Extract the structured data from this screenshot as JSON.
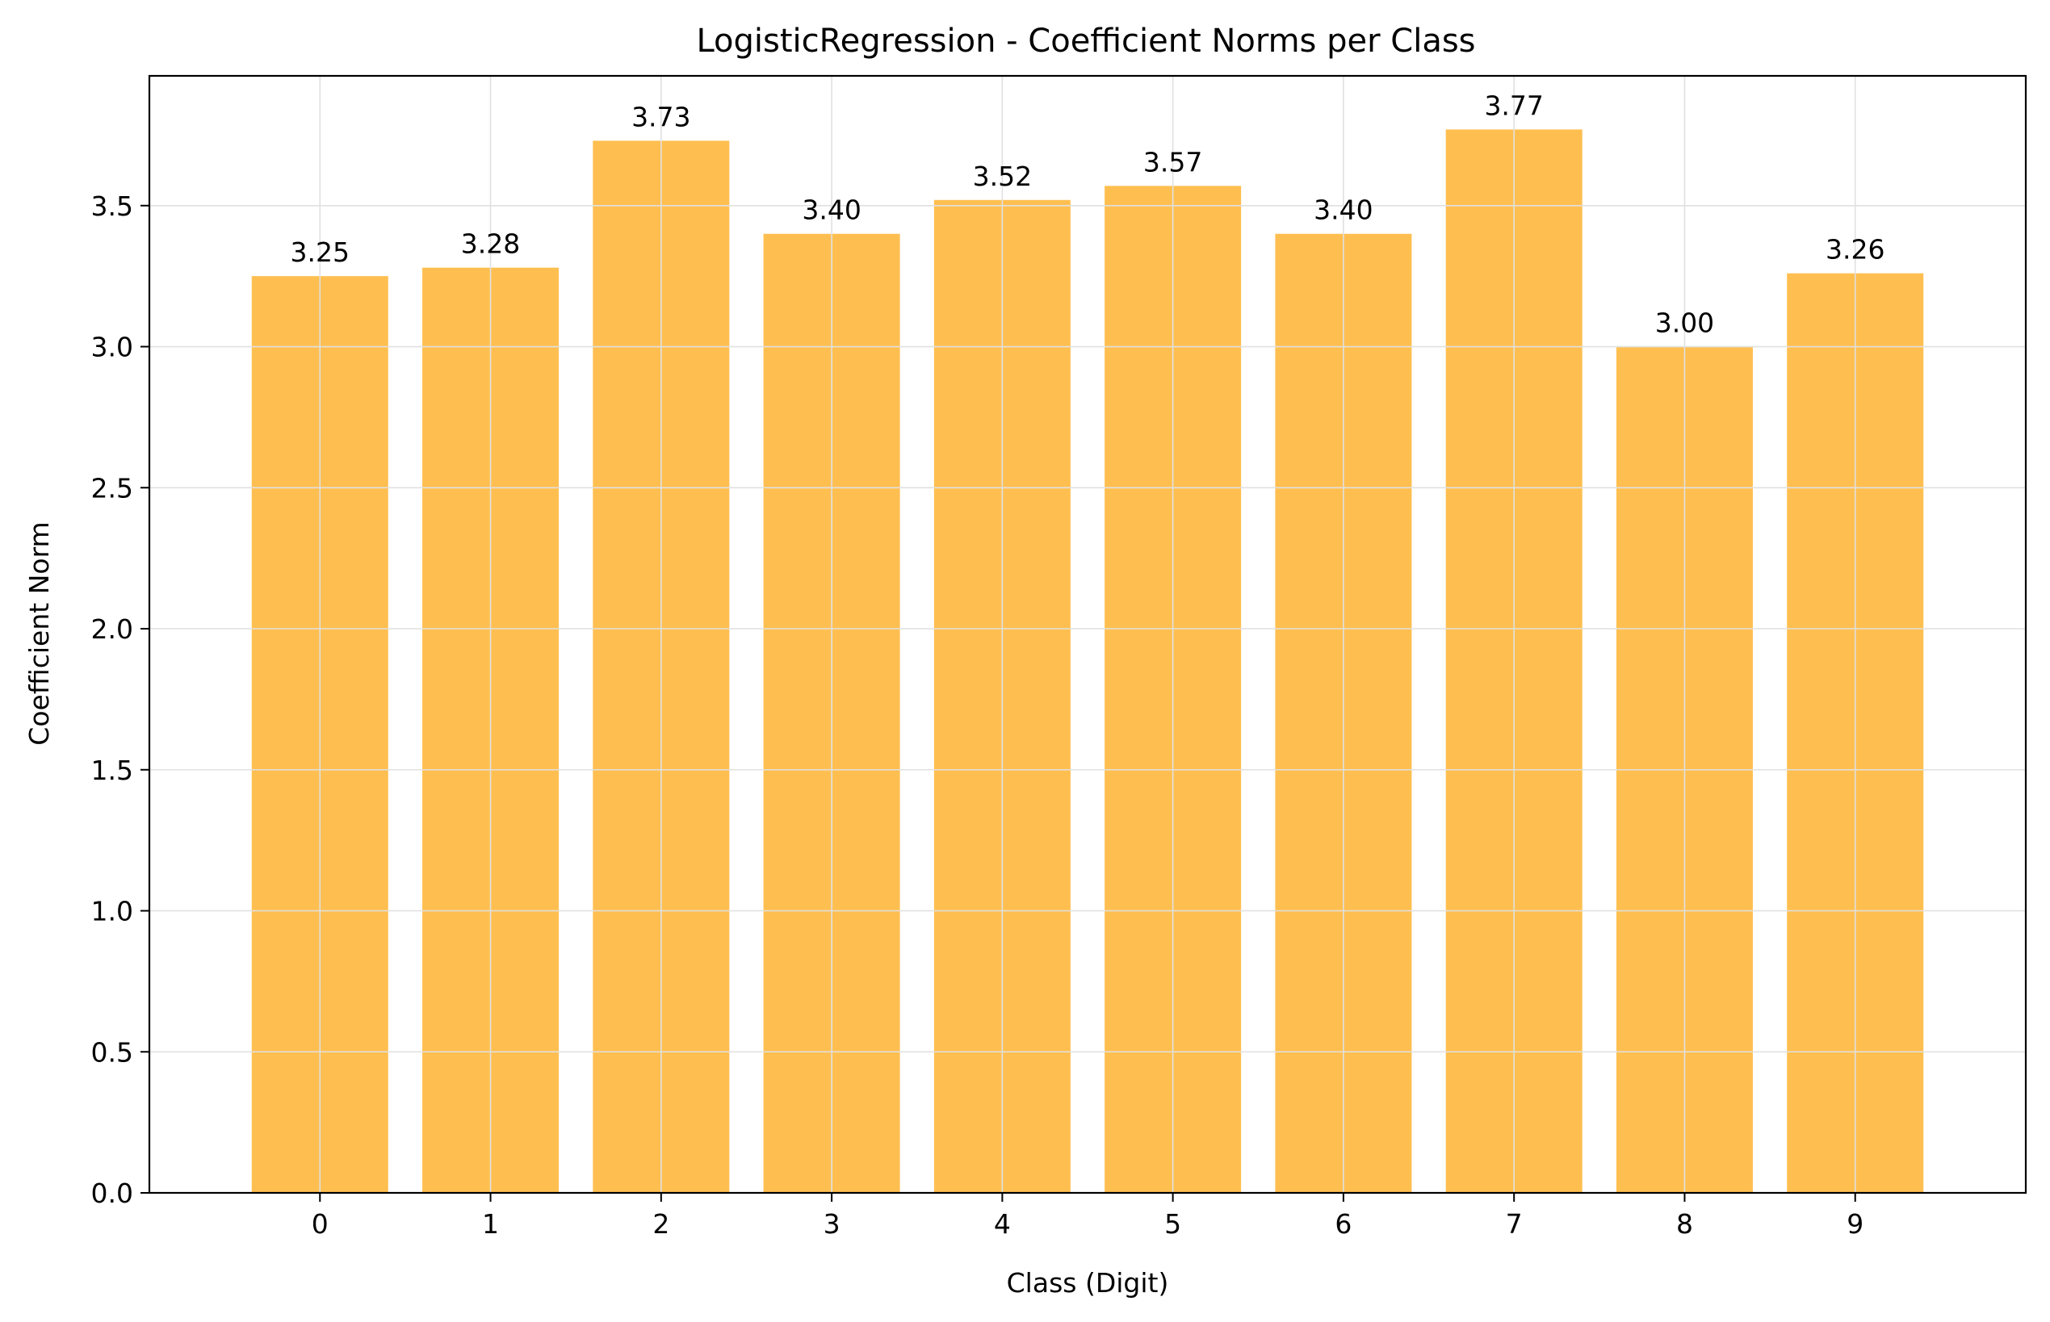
{
  "chart_data": {
    "type": "bar",
    "title": "LogisticRegression - Coefficient Norms per Class",
    "xlabel": "Class (Digit)",
    "ylabel": "Coefficient Norm",
    "categories": [
      "0",
      "1",
      "2",
      "3",
      "4",
      "5",
      "6",
      "7",
      "8",
      "9"
    ],
    "values": [
      3.25,
      3.28,
      3.73,
      3.4,
      3.52,
      3.57,
      3.4,
      3.77,
      3.0,
      3.26
    ],
    "value_labels": [
      "3.25",
      "3.28",
      "3.73",
      "3.40",
      "3.52",
      "3.57",
      "3.40",
      "3.77",
      "3.00",
      "3.26"
    ],
    "yticks": [
      0.0,
      0.5,
      1.0,
      1.5,
      2.0,
      2.5,
      3.0,
      3.5
    ],
    "ytick_labels": [
      "0.0",
      "0.5",
      "1.0",
      "1.5",
      "2.0",
      "2.5",
      "3.0",
      "3.5"
    ],
    "ylim": [
      0,
      3.96
    ],
    "grid": true,
    "bar_color": "#FFBE4D",
    "grid_color": "#e0e0e0"
  }
}
